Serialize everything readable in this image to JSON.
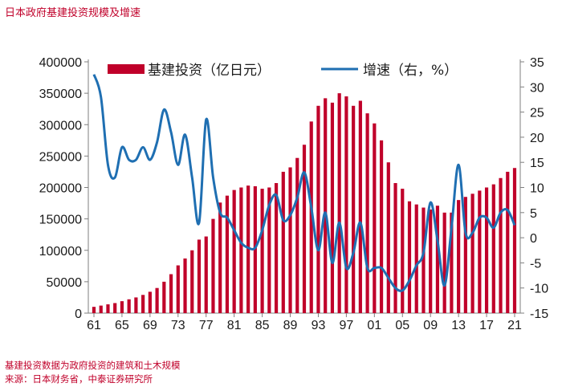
{
  "header": {
    "title": "日本政府基建投资规模及增速"
  },
  "footer": {
    "note": "基建投资数据为政府投资的建筑和土木规模",
    "source": "来源：日本财务省，中泰证券研究所"
  },
  "colors": {
    "bar": "#c0002a",
    "line": "#1f6fb2",
    "text": "#c0002a"
  },
  "chart_data": {
    "type": "bar+line",
    "title": "日本政府基建投资规模及增速",
    "x_years": [
      1961,
      1962,
      1963,
      1964,
      1965,
      1966,
      1967,
      1968,
      1969,
      1970,
      1971,
      1972,
      1973,
      1974,
      1975,
      1976,
      1977,
      1978,
      1979,
      1980,
      1981,
      1982,
      1983,
      1984,
      1985,
      1986,
      1987,
      1988,
      1989,
      1990,
      1991,
      1992,
      1993,
      1994,
      1995,
      1996,
      1997,
      1998,
      1999,
      2000,
      2001,
      2002,
      2003,
      2004,
      2005,
      2006,
      2007,
      2008,
      2009,
      2010,
      2011,
      2012,
      2013,
      2014,
      2015,
      2016,
      2017,
      2018,
      2019,
      2020,
      2021
    ],
    "x_tick_labels": [
      "61",
      "65",
      "69",
      "73",
      "77",
      "81",
      "85",
      "89",
      "93",
      "97",
      "01",
      "05",
      "09",
      "13",
      "17",
      "21"
    ],
    "left_axis": {
      "min": 0,
      "max": 400000,
      "ticks": [
        "0",
        "50000",
        "100000",
        "150000",
        "200000",
        "250000",
        "300000",
        "350000",
        "400000"
      ]
    },
    "right_axis": {
      "min": -15,
      "max": 35,
      "ticks": [
        "-15",
        "-10",
        "-5",
        "0",
        "5",
        "10",
        "15",
        "20",
        "25",
        "30",
        "35"
      ]
    },
    "series": [
      {
        "name": "基建投资（亿日元）",
        "axis": "left",
        "kind": "bar",
        "values": [
          10000,
          12000,
          14000,
          16000,
          19000,
          22000,
          25000,
          29000,
          34000,
          40000,
          50000,
          62000,
          76000,
          87000,
          100000,
          117000,
          122000,
          150000,
          176000,
          187000,
          196000,
          200000,
          203000,
          202000,
          198000,
          200000,
          207000,
          225000,
          232000,
          247000,
          268000,
          305000,
          330000,
          342000,
          335000,
          350000,
          345000,
          330000,
          338000,
          318000,
          302000,
          275000,
          240000,
          207000,
          198000,
          178000,
          173000,
          168000,
          165000,
          171000,
          160000,
          160000,
          180000,
          185000,
          190000,
          195000,
          200000,
          205000,
          215000,
          225000,
          231000
        ]
      },
      {
        "name": "增速（右，%）",
        "axis": "right",
        "kind": "line",
        "values": [
          32.5,
          28,
          14.5,
          12,
          18,
          15.5,
          15.5,
          18,
          15.5,
          19,
          25.5,
          21,
          14.5,
          20.5,
          12,
          3,
          23.5,
          12,
          5,
          4,
          1.5,
          -1,
          -2,
          -2,
          1.5,
          6.5,
          8.5,
          3.5,
          4.5,
          8,
          13,
          6,
          -2.5,
          5,
          -5,
          3,
          -6,
          -3,
          3,
          -6,
          -6,
          -6,
          -8,
          -10,
          -10.5,
          -8.5,
          -5.5,
          -3,
          7,
          -0.5,
          -9.5,
          2,
          14.5,
          1,
          1,
          4,
          4,
          2,
          5,
          5.5,
          2.5
        ]
      }
    ],
    "legend": {
      "placement": "top"
    }
  }
}
